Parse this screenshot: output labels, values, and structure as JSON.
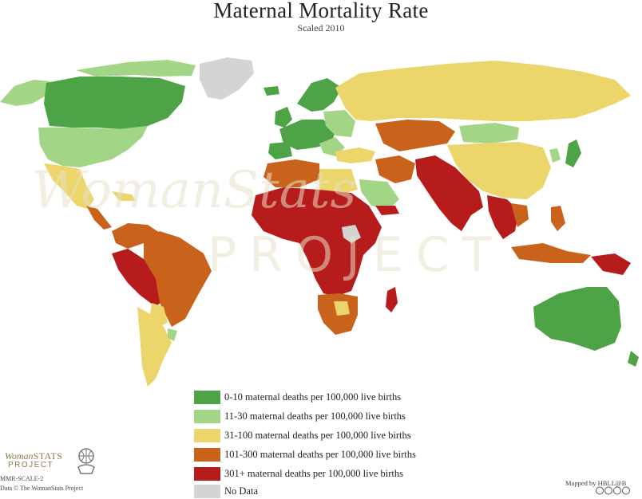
{
  "title": "Maternal Mortality Rate",
  "subtitle": "Scaled 2010",
  "watermark": {
    "line1": "WomanStats",
    "line2": "PROJECT"
  },
  "legend": [
    {
      "label": "0-10 maternal deaths per 100,000 live births",
      "color": "#4ea346"
    },
    {
      "label": "11-30 maternal deaths per 100,000 live births",
      "color": "#a3d586"
    },
    {
      "label": "31-100 maternal deaths per 100,000 live births",
      "color": "#ecd56b"
    },
    {
      "label": "101-300 maternal deaths per 100,000 live births",
      "color": "#c9621a"
    },
    {
      "label": "301+ maternal deaths per 100,000 live births",
      "color": "#b71c1c"
    },
    {
      "label": "No Data",
      "color": "#d4d4d4"
    }
  ],
  "footer": {
    "logo_line1_a": "Woman",
    "logo_line1_b": "STATS",
    "logo_line2": "PROJECT",
    "scale_code": "MMR-SCALE-2",
    "copyright": "Data © The WomanStats Project",
    "mapped_by": "Mapped by HBLL@B"
  },
  "icons": {
    "logo": "globe-hands-icon",
    "license": "creative-commons-icon"
  }
}
